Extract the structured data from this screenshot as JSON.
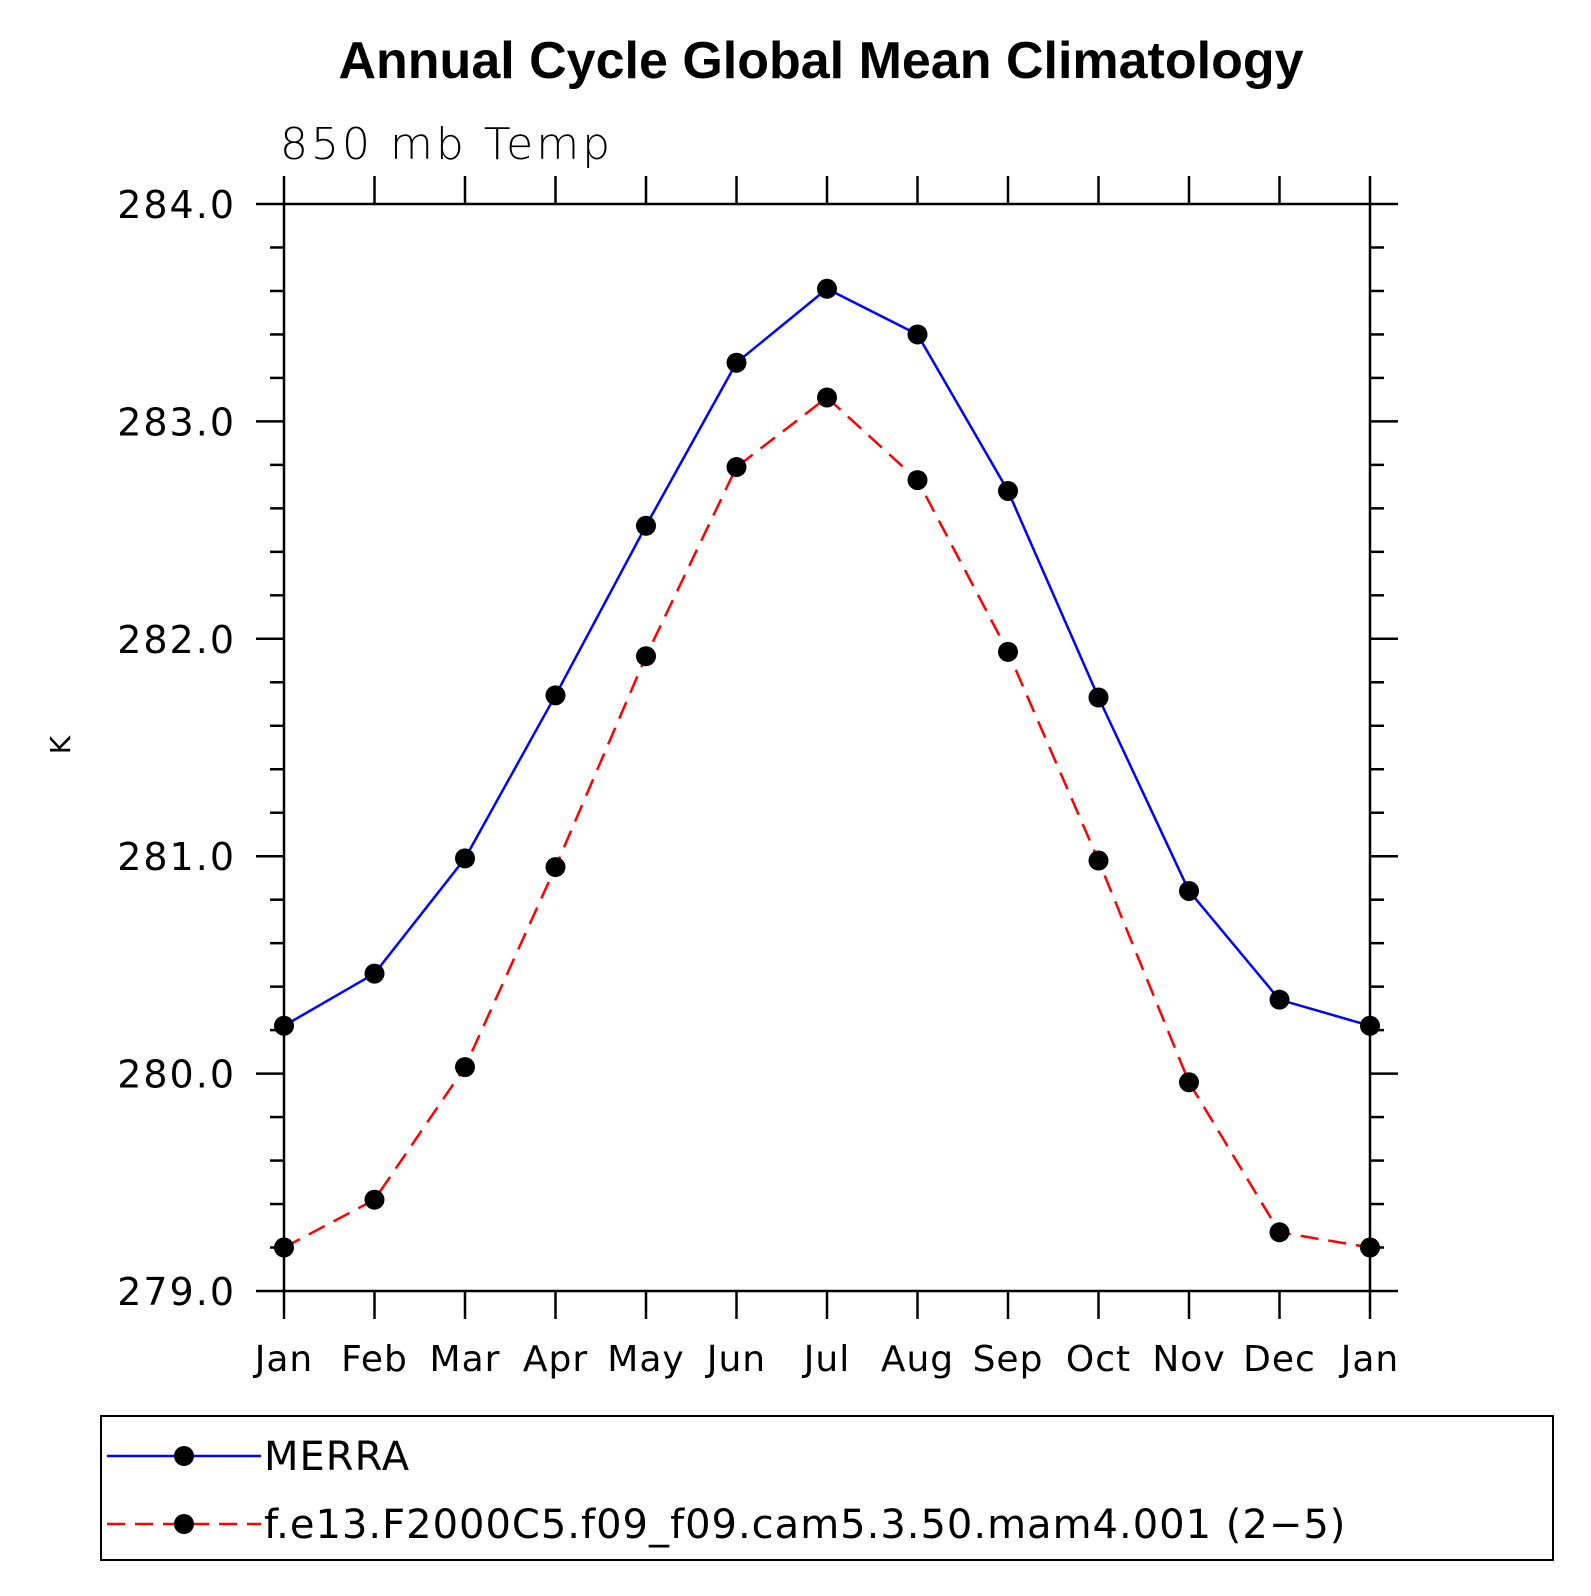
{
  "chart_data": {
    "type": "line",
    "title": "Annual Cycle Global Mean Climatology",
    "subtitle": "850 mb Temp",
    "xlabel": "",
    "ylabel": "K",
    "categories": [
      "Jan",
      "Feb",
      "Mar",
      "Apr",
      "May",
      "Jun",
      "Jul",
      "Aug",
      "Sep",
      "Oct",
      "Nov",
      "Dec",
      "Jan"
    ],
    "ylim": [
      279.0,
      284.0
    ],
    "yticks": [
      "279.0",
      "280.0",
      "281.0",
      "282.0",
      "283.0",
      "284.0"
    ],
    "grid": false,
    "legend_position": "bottom",
    "series": [
      {
        "name": "MERRA",
        "color": "#0000ff",
        "dash": "solid",
        "marker": "filled-circle",
        "values": [
          280.22,
          280.46,
          280.99,
          281.74,
          282.52,
          283.27,
          283.61,
          283.4,
          282.68,
          281.73,
          280.84,
          280.34,
          280.22
        ]
      },
      {
        "name": "f.e13.F2000C5.f09_f09.cam5.3.50.mam4.001 (2−5)",
        "color": "#ff0000",
        "dash": "dashed",
        "marker": "filled-circle",
        "values": [
          279.2,
          279.42,
          280.03,
          280.95,
          281.92,
          282.79,
          283.11,
          282.73,
          281.94,
          280.98,
          279.96,
          279.27,
          279.2
        ]
      }
    ]
  }
}
